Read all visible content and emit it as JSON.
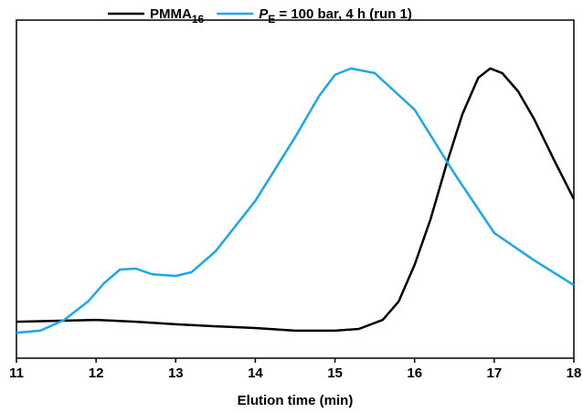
{
  "chart_data": {
    "type": "line",
    "xlabel": "Elution time (min)",
    "xlim": [
      11,
      18
    ],
    "xticks": [
      11,
      12,
      13,
      14,
      15,
      16,
      17,
      18
    ],
    "ylim": [
      0,
      1.167
    ],
    "series": [
      {
        "name_parts": [
          {
            "text": "PMMA",
            "style": "normal"
          },
          {
            "text": "16",
            "style": "sub"
          }
        ],
        "color": "#000000",
        "x": [
          11,
          11.5,
          12,
          12.5,
          13,
          13.5,
          14,
          14.5,
          15,
          15.3,
          15.6,
          15.8,
          16,
          16.2,
          16.4,
          16.6,
          16.8,
          16.95,
          17.1,
          17.3,
          17.5,
          17.75,
          18
        ],
        "values": [
          0.126,
          0.129,
          0.132,
          0.126,
          0.117,
          0.11,
          0.104,
          0.095,
          0.095,
          0.101,
          0.132,
          0.196,
          0.322,
          0.479,
          0.669,
          0.842,
          0.968,
          1.0,
          0.984,
          0.921,
          0.826,
          0.685,
          0.549
        ]
      },
      {
        "name_parts": [
          {
            "text": "P",
            "style": "italic"
          },
          {
            "text": "E",
            "style": "sub"
          },
          {
            "text": " = 100 bar, 4 h (run 1)",
            "style": "normal"
          }
        ],
        "color": "#1aa7ec",
        "x": [
          11,
          11.3,
          11.6,
          11.9,
          12.1,
          12.3,
          12.5,
          12.7,
          13,
          13.2,
          13.5,
          14,
          14.5,
          14.8,
          15,
          15.2,
          15.5,
          16,
          16.5,
          17,
          17.5,
          18
        ],
        "values": [
          0.088,
          0.095,
          0.132,
          0.196,
          0.259,
          0.306,
          0.309,
          0.29,
          0.284,
          0.297,
          0.369,
          0.543,
          0.763,
          0.905,
          0.978,
          1.0,
          0.984,
          0.858,
          0.637,
          0.432,
          0.338,
          0.252
        ]
      }
    ]
  }
}
